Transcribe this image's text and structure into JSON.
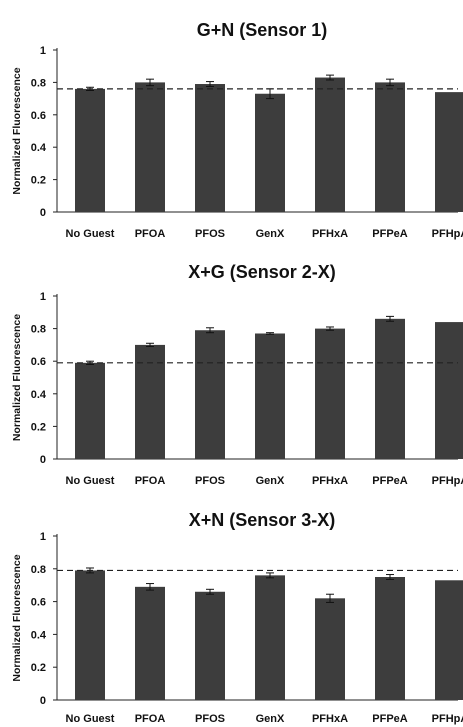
{
  "chart_data": [
    {
      "type": "bar",
      "title": "G+N (Sensor 1)",
      "ylabel": "Normalized Fluorescence",
      "xlabel": "",
      "ylim": [
        0,
        1
      ],
      "yticks": [
        "0",
        "0.2",
        "0.4",
        "0.6",
        "0.8",
        "1"
      ],
      "categories": [
        "No Guest",
        "PFOA",
        "PFOS",
        "GenX",
        "PFHxA",
        "PFPeA",
        "PFHpA"
      ],
      "values": [
        0.76,
        0.8,
        0.79,
        0.73,
        0.83,
        0.8,
        0.74
      ],
      "errors": [
        0.01,
        0.02,
        0.015,
        0.03,
        0.015,
        0.02,
        0.0
      ],
      "reference_line": 0.76,
      "bar_color": "#3d3d3d"
    },
    {
      "type": "bar",
      "title": "X+G (Sensor 2-X)",
      "ylabel": "Normalized Fluorescence",
      "xlabel": "",
      "ylim": [
        0,
        1
      ],
      "yticks": [
        "0",
        "0.2",
        "0.4",
        "0.6",
        "0.8",
        "1"
      ],
      "categories": [
        "No Guest",
        "PFOA",
        "PFOS",
        "GenX",
        "PFHxA",
        "PFPeA",
        "PFHpA"
      ],
      "values": [
        0.59,
        0.7,
        0.79,
        0.77,
        0.8,
        0.86,
        0.84
      ],
      "errors": [
        0.01,
        0.01,
        0.015,
        0.005,
        0.01,
        0.015,
        0.0
      ],
      "reference_line": 0.59,
      "bar_color": "#3d3d3d"
    },
    {
      "type": "bar",
      "title": "X+N (Sensor 3-X)",
      "ylabel": "Normalized Fluorescence",
      "xlabel": "",
      "ylim": [
        0,
        1
      ],
      "yticks": [
        "0",
        "0.2",
        "0.4",
        "0.6",
        "0.8",
        "1"
      ],
      "categories": [
        "No Guest",
        "PFOA",
        "PFOS",
        "GenX",
        "PFHxA",
        "PFPeA",
        "PFHpA"
      ],
      "values": [
        0.79,
        0.69,
        0.66,
        0.76,
        0.62,
        0.75,
        0.73
      ],
      "errors": [
        0.015,
        0.02,
        0.015,
        0.015,
        0.025,
        0.015,
        0.0
      ],
      "reference_line": 0.79,
      "bar_color": "#3d3d3d"
    }
  ]
}
